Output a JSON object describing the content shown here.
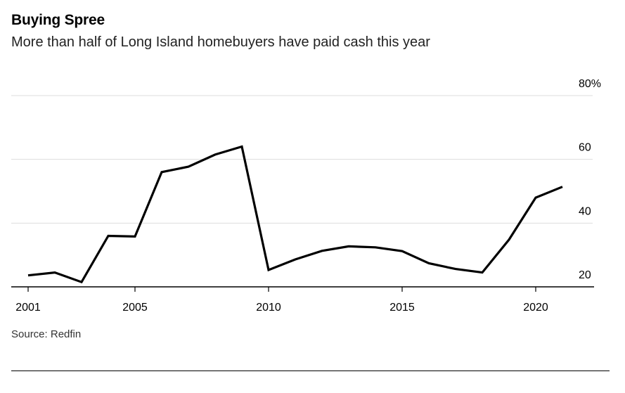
{
  "header": {
    "title": "Buying Spree",
    "subtitle": "More than half of Long Island homebuyers have paid cash this year"
  },
  "footer": {
    "source": "Source: Redfin"
  },
  "chart_data": {
    "type": "line",
    "title": "Buying Spree",
    "subtitle": "More than half of Long Island homebuyers have paid cash this year",
    "xlabel": "",
    "ylabel": "",
    "x": [
      2001,
      2002,
      2003,
      2004,
      2005,
      2006,
      2007,
      2008,
      2009,
      2010,
      2011,
      2012,
      2013,
      2014,
      2015,
      2016,
      2017,
      2018,
      2019,
      2020,
      2021
    ],
    "series": [
      {
        "values": [
          23.6,
          24.5,
          21.5,
          36.0,
          35.8,
          56.0,
          57.7,
          61.5,
          64.0,
          25.3,
          28.6,
          31.3,
          32.7,
          32.4,
          31.2,
          27.4,
          25.6,
          24.5,
          34.8,
          48.0,
          51.4
        ],
        "color": "#000000"
      }
    ],
    "xlim": [
      2001,
      2022.5
    ],
    "ylim": [
      20,
      80
    ],
    "yticks": [
      20,
      40,
      60,
      80
    ],
    "ytick_labels": [
      "20",
      "40",
      "60",
      "80%"
    ],
    "xticks": [
      2001,
      2005,
      2010,
      2015,
      2020
    ],
    "xtick_labels": [
      "2001",
      "2005",
      "2010",
      "2015",
      "2020"
    ],
    "y_axis_side": "right",
    "grid": true,
    "legend": "none"
  }
}
